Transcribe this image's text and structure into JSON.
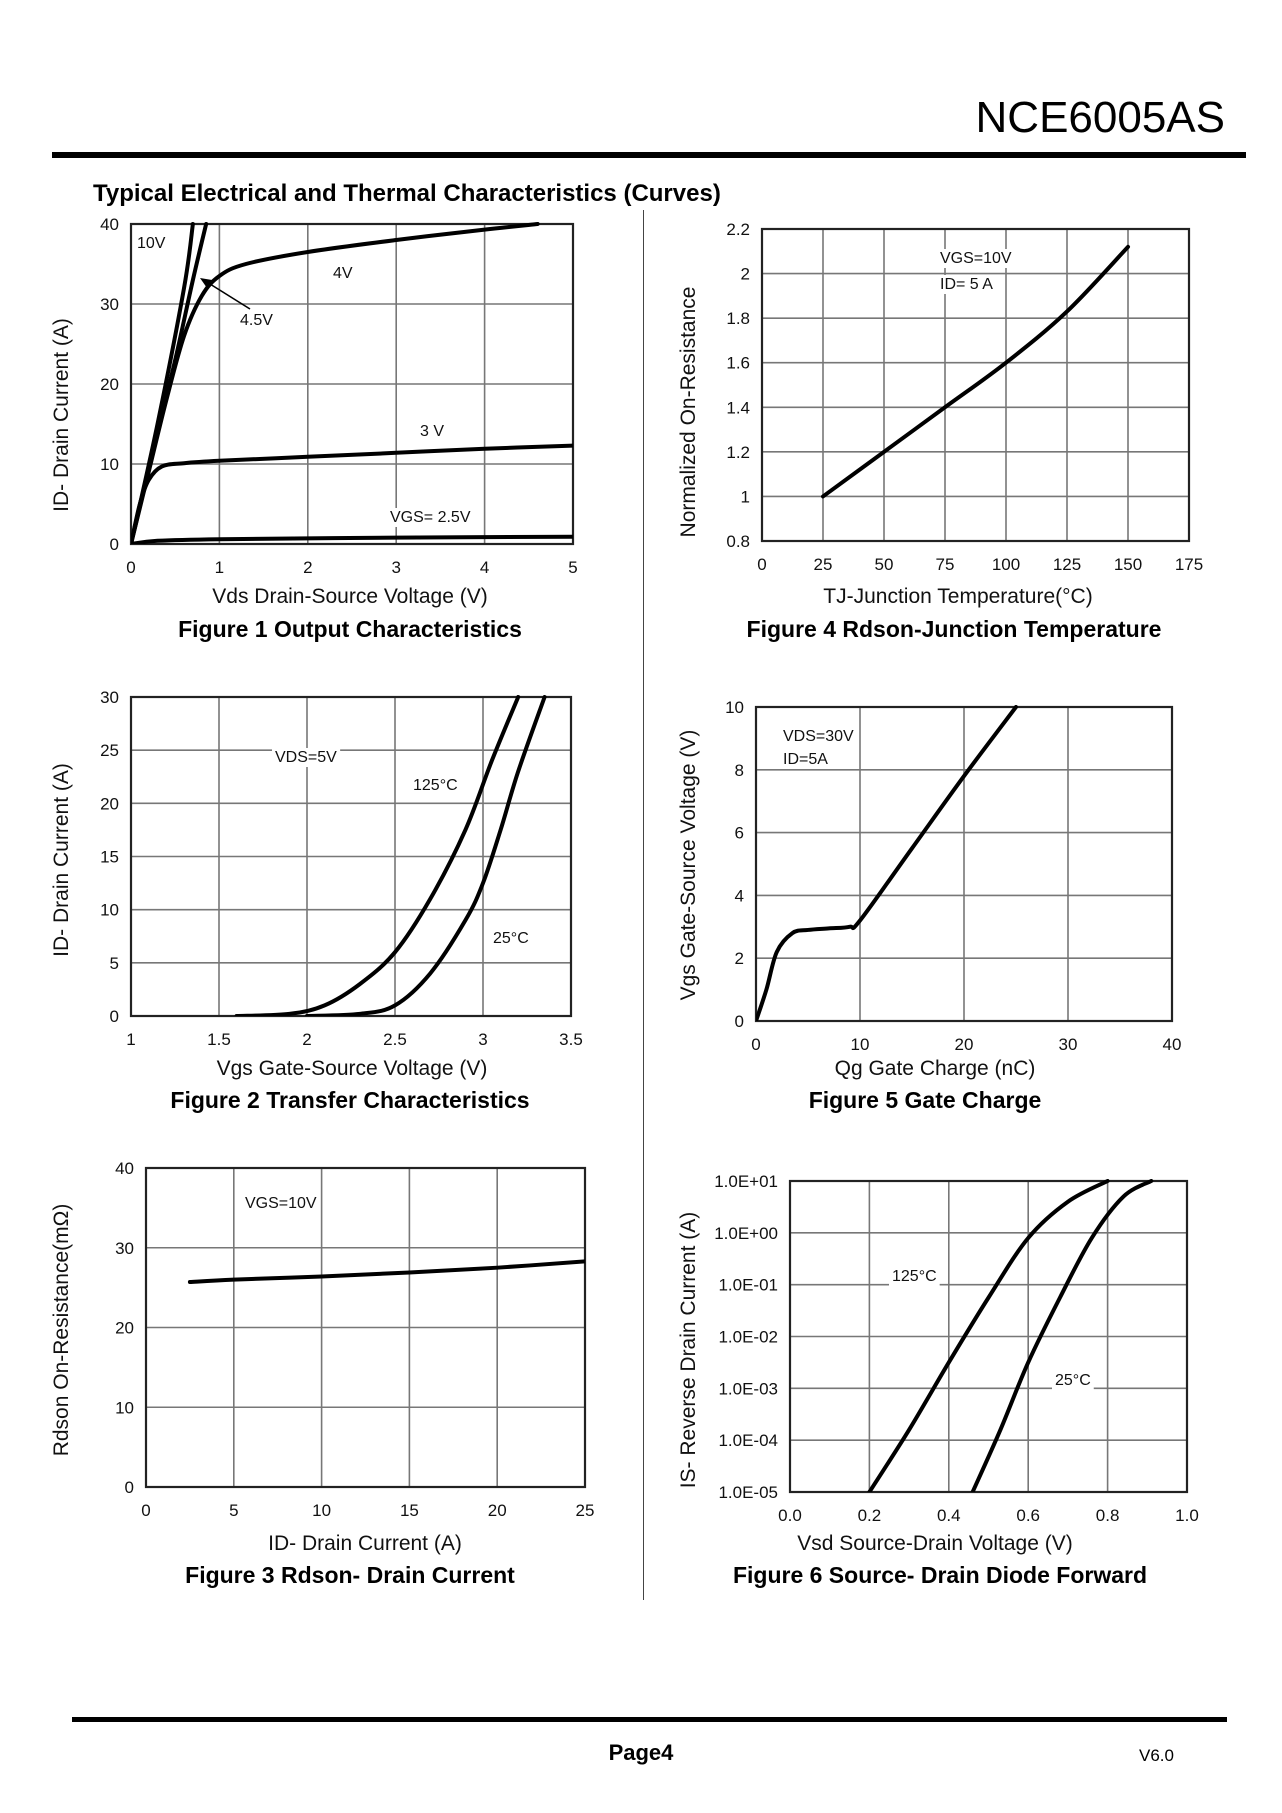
{
  "header": {
    "part_number": "NCE6005AS",
    "section_title": "Typical Electrical and Thermal Characteristics (Curves)"
  },
  "footer": {
    "page": "Page4",
    "version": "V6.0"
  },
  "chart_data": [
    {
      "id": "fig1",
      "type": "line",
      "title": "Figure 1 Output Characteristics",
      "xlabel": "Vds Drain-Source Voltage (V)",
      "ylabel": "ID- Drain Current (A)",
      "xlim": [
        0,
        5
      ],
      "ylim": [
        0,
        40
      ],
      "xticks": [
        "0",
        "1",
        "2",
        "3",
        "4",
        "5"
      ],
      "yticks": [
        "0",
        "10",
        "20",
        "30",
        "40"
      ],
      "annotations": [
        "10V",
        "4.5V",
        "4V",
        "3 V",
        "VGS= 2.5V"
      ],
      "series": [
        {
          "name": "10V",
          "points": [
            [
              0,
              0
            ],
            [
              0.3,
              15
            ],
            [
              0.6,
              32
            ],
            [
              0.7,
              40
            ]
          ]
        },
        {
          "name": "4.5V",
          "points": [
            [
              0,
              0
            ],
            [
              0.3,
              14
            ],
            [
              0.5,
              23
            ],
            [
              0.7,
              33
            ],
            [
              0.85,
              40
            ]
          ]
        },
        {
          "name": "4V",
          "points": [
            [
              0,
              0
            ],
            [
              0.2,
              9
            ],
            [
              0.4,
              18
            ],
            [
              0.6,
              26
            ],
            [
              0.8,
              31
            ],
            [
              1.0,
              33.5
            ],
            [
              1.3,
              35
            ],
            [
              2,
              36.5
            ],
            [
              3,
              38
            ],
            [
              4,
              39.3
            ],
            [
              4.6,
              40
            ]
          ]
        },
        {
          "name": "3 V",
          "points": [
            [
              0,
              0
            ],
            [
              0.1,
              5
            ],
            [
              0.2,
              8
            ],
            [
              0.35,
              9.7
            ],
            [
              0.6,
              10.1
            ],
            [
              1,
              10.4
            ],
            [
              2,
              10.9
            ],
            [
              3,
              11.4
            ],
            [
              4,
              11.9
            ],
            [
              5,
              12.3
            ]
          ]
        },
        {
          "name": "VGS= 2.5V",
          "points": [
            [
              0,
              0
            ],
            [
              0.3,
              0.4
            ],
            [
              1,
              0.6
            ],
            [
              3,
              0.8
            ],
            [
              5,
              0.9
            ]
          ]
        }
      ]
    },
    {
      "id": "fig4",
      "type": "line",
      "title": "Figure 4 Rdson-Junction Temperature",
      "xlabel": "TJ-Junction Temperature(°C)",
      "ylabel": "Normalized On-Resistance",
      "xlim": [
        0,
        175
      ],
      "ylim": [
        0.8,
        2.2
      ],
      "xticks": [
        "0",
        "25",
        "50",
        "75",
        "100",
        "125",
        "150",
        "175"
      ],
      "yticks": [
        "0.8",
        "1",
        "1.2",
        "1.4",
        "1.6",
        "1.8",
        "2",
        "2.2"
      ],
      "annotations": [
        "VGS=10V",
        "ID= 5 A"
      ],
      "series": [
        {
          "name": "Rdson",
          "points": [
            [
              25,
              1.0
            ],
            [
              50,
              1.2
            ],
            [
              75,
              1.4
            ],
            [
              100,
              1.6
            ],
            [
              125,
              1.83
            ],
            [
              150,
              2.12
            ]
          ]
        }
      ]
    },
    {
      "id": "fig2",
      "type": "line",
      "title": "Figure 2 Transfer Characteristics",
      "xlabel": "Vgs Gate-Source Voltage (V)",
      "ylabel": "ID- Drain Current (A)",
      "xlim": [
        1,
        3.5
      ],
      "ylim": [
        0,
        30
      ],
      "xticks": [
        "1",
        "1.5",
        "2",
        "2.5",
        "3",
        "3.5"
      ],
      "yticks": [
        "0",
        "5",
        "10",
        "15",
        "20",
        "25",
        "30"
      ],
      "annotations": [
        "VDS=5V",
        "125°C",
        "25°C"
      ],
      "series": [
        {
          "name": "125°C",
          "points": [
            [
              1.6,
              0
            ],
            [
              1.9,
              0.2
            ],
            [
              2.1,
              1
            ],
            [
              2.3,
              3
            ],
            [
              2.5,
              6
            ],
            [
              2.7,
              11
            ],
            [
              2.9,
              17.5
            ],
            [
              3.05,
              24
            ],
            [
              3.2,
              30
            ]
          ]
        },
        {
          "name": "25°C",
          "points": [
            [
              2,
              0
            ],
            [
              2.3,
              0.2
            ],
            [
              2.5,
              1
            ],
            [
              2.7,
              4
            ],
            [
              2.9,
              9
            ],
            [
              3.0,
              12.5
            ],
            [
              3.1,
              17.5
            ],
            [
              3.2,
              23
            ],
            [
              3.35,
              30
            ]
          ]
        }
      ]
    },
    {
      "id": "fig5",
      "type": "line",
      "title": "Figure 5 Gate Charge",
      "xlabel": "Qg Gate Charge (nC)",
      "ylabel": "Vgs Gate-Source Voltage (V)",
      "xlim": [
        0,
        40
      ],
      "ylim": [
        0,
        10
      ],
      "xticks": [
        "0",
        "10",
        "20",
        "30",
        "40"
      ],
      "yticks": [
        "0",
        "2",
        "4",
        "6",
        "8",
        "10"
      ],
      "annotations": [
        "VDS=30V",
        "ID=5A"
      ],
      "series": [
        {
          "name": "Vgs",
          "points": [
            [
              0,
              0
            ],
            [
              1,
              1
            ],
            [
              2,
              2.2
            ],
            [
              3.5,
              2.8
            ],
            [
              5,
              2.9
            ],
            [
              7,
              2.95
            ],
            [
              9,
              3.0
            ],
            [
              10,
              3.2
            ],
            [
              15,
              5.5
            ],
            [
              20,
              7.8
            ],
            [
              25,
              10
            ]
          ]
        }
      ]
    },
    {
      "id": "fig3",
      "type": "line",
      "title": "Figure 3 Rdson- Drain Current",
      "xlabel": "ID- Drain Current (A)",
      "ylabel": "Rdson On-Resistance(mΩ)",
      "xlim": [
        0,
        25
      ],
      "ylim": [
        0,
        40
      ],
      "xticks": [
        "0",
        "5",
        "10",
        "15",
        "20",
        "25"
      ],
      "yticks": [
        "0",
        "10",
        "20",
        "30",
        "40"
      ],
      "annotations": [
        "VGS=10V"
      ],
      "series": [
        {
          "name": "Rdson",
          "points": [
            [
              2.5,
              25.7
            ],
            [
              5,
              26
            ],
            [
              10,
              26.4
            ],
            [
              15,
              26.9
            ],
            [
              20,
              27.5
            ],
            [
              25,
              28.3
            ]
          ]
        }
      ]
    },
    {
      "id": "fig6",
      "type": "line",
      "title": "Figure 6 Source- Drain Diode Forward",
      "xlabel": "Vsd Source-Drain Voltage (V)",
      "ylabel": "IS- Reverse Drain Current (A)",
      "xlim": [
        0,
        1.0
      ],
      "ylim_log10": [
        -5,
        1
      ],
      "yscale": "log",
      "xticks": [
        "0.0",
        "0.2",
        "0.4",
        "0.6",
        "0.8",
        "1.0"
      ],
      "yticks": [
        "1.0E-05",
        "1.0E-04",
        "1.0E-03",
        "1.0E-02",
        "1.0E-01",
        "1.0E+00",
        "1.0E+01"
      ],
      "annotations": [
        "125°C",
        "25°C"
      ],
      "series": [
        {
          "name": "125°C",
          "points": [
            [
              0.2,
              -5
            ],
            [
              0.3,
              -3.8
            ],
            [
              0.4,
              -2.5
            ],
            [
              0.5,
              -1.25
            ],
            [
              0.6,
              -0.1
            ],
            [
              0.7,
              0.6
            ],
            [
              0.8,
              1
            ]
          ]
        },
        {
          "name": "25°C",
          "points": [
            [
              0.46,
              -5
            ],
            [
              0.53,
              -3.8
            ],
            [
              0.6,
              -2.5
            ],
            [
              0.68,
              -1.25
            ],
            [
              0.76,
              -0.1
            ],
            [
              0.84,
              0.7
            ],
            [
              0.91,
              1
            ]
          ]
        }
      ]
    }
  ]
}
